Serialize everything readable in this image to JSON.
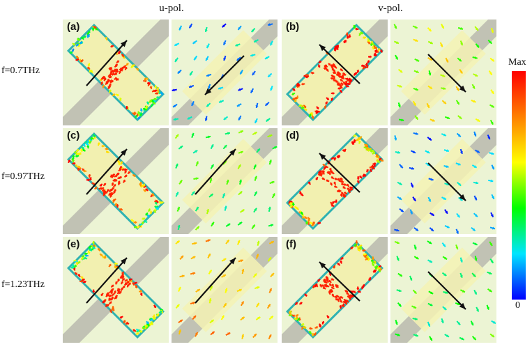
{
  "columns": {
    "u": "u-pol.",
    "v": "v-pol."
  },
  "rows": [
    {
      "freq": "f=0.7THz",
      "tags": [
        "(a)",
        "(b)"
      ]
    },
    {
      "freq": "f=0.97THz",
      "tags": [
        "(c)",
        "(d)"
      ]
    },
    {
      "freq": "f=1.23THz",
      "tags": [
        "(e)",
        "(f)"
      ]
    }
  ],
  "colorbar": {
    "max_label": "Max",
    "min_label": "0",
    "colors": [
      "#0000ff",
      "#00e5ff",
      "#00ff00",
      "#ffff00",
      "#ff8000",
      "#ff0000"
    ]
  },
  "colors": {
    "panel_bg": "#ecf4d4",
    "bar": "#bcbcb0",
    "patch": "#f5f2b4",
    "arrow": "#111111"
  },
  "panels": [
    {
      "id": "a",
      "kind": "structure",
      "orient": "ne",
      "arrow": "up-right",
      "field_level": 0.55
    },
    {
      "id": "a2",
      "kind": "field",
      "arrow": "down-left",
      "field_level": 0.15
    },
    {
      "id": "b",
      "kind": "structure",
      "orient": "nw",
      "arrow": "up-left",
      "field_level": 0.85
    },
    {
      "id": "b2",
      "kind": "field",
      "arrow": "down-right",
      "field_level": 0.55
    },
    {
      "id": "c",
      "kind": "structure",
      "orient": "ne",
      "arrow": "up-right",
      "field_level": 0.6
    },
    {
      "id": "c2",
      "kind": "field",
      "arrow": "up-right",
      "field_level": 0.4
    },
    {
      "id": "d",
      "kind": "structure",
      "orient": "nw",
      "arrow": "up-left",
      "field_level": 0.85
    },
    {
      "id": "d2",
      "kind": "field",
      "arrow": "down-right",
      "field_level": 0.12
    },
    {
      "id": "e",
      "kind": "structure",
      "orient": "ne",
      "arrow": "up-right",
      "field_level": 0.6
    },
    {
      "id": "e2",
      "kind": "field",
      "arrow": "up-right",
      "field_level": 0.7
    },
    {
      "id": "f",
      "kind": "structure",
      "orient": "nw",
      "arrow": "up-left",
      "field_level": 0.85
    },
    {
      "id": "f2",
      "kind": "field",
      "arrow": "down-right",
      "field_level": 0.35
    }
  ]
}
